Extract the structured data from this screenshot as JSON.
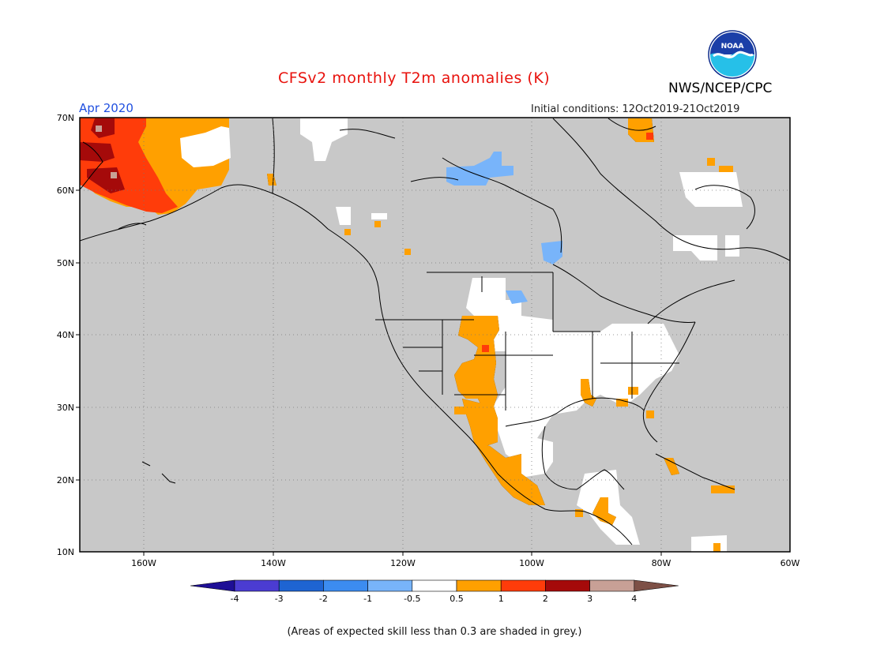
{
  "header": {
    "title": "CFSv2 monthly T2m anomalies (K)",
    "agency": "NWS/NCEP/CPC",
    "month": "Apr 2020",
    "initial_conditions": "Initial conditions: 12Oct2019-21Oct2019"
  },
  "logo": {
    "icon": "noaa-logo-icon",
    "text": "NOAA"
  },
  "map": {
    "projection": "lat-lon",
    "lon_range": [
      -170,
      -60
    ],
    "lat_range": [
      10,
      70
    ],
    "lat_labels": [
      "70N",
      "60N",
      "50N",
      "40N",
      "30N",
      "20N",
      "10N"
    ],
    "lon_labels": [
      "160W",
      "140W",
      "120W",
      "100W",
      "80W",
      "60W"
    ],
    "background_color": "#c8c8c8"
  },
  "colorbar": {
    "labels": [
      "-4",
      "-3",
      "-2",
      "-1",
      "-0.5",
      "0.5",
      "1",
      "2",
      "3",
      "4"
    ],
    "colors": [
      "#1e0f96",
      "#4b3cd2",
      "#1e64d2",
      "#3c8cf0",
      "#78b4fa",
      "#ffffff",
      "#ffa000",
      "#ff3c0a",
      "#a50a0a",
      "#c8a096",
      "#7d5046"
    ]
  },
  "footnote": "(Areas of expected skill less than 0.3 are shaded in grey.)"
}
